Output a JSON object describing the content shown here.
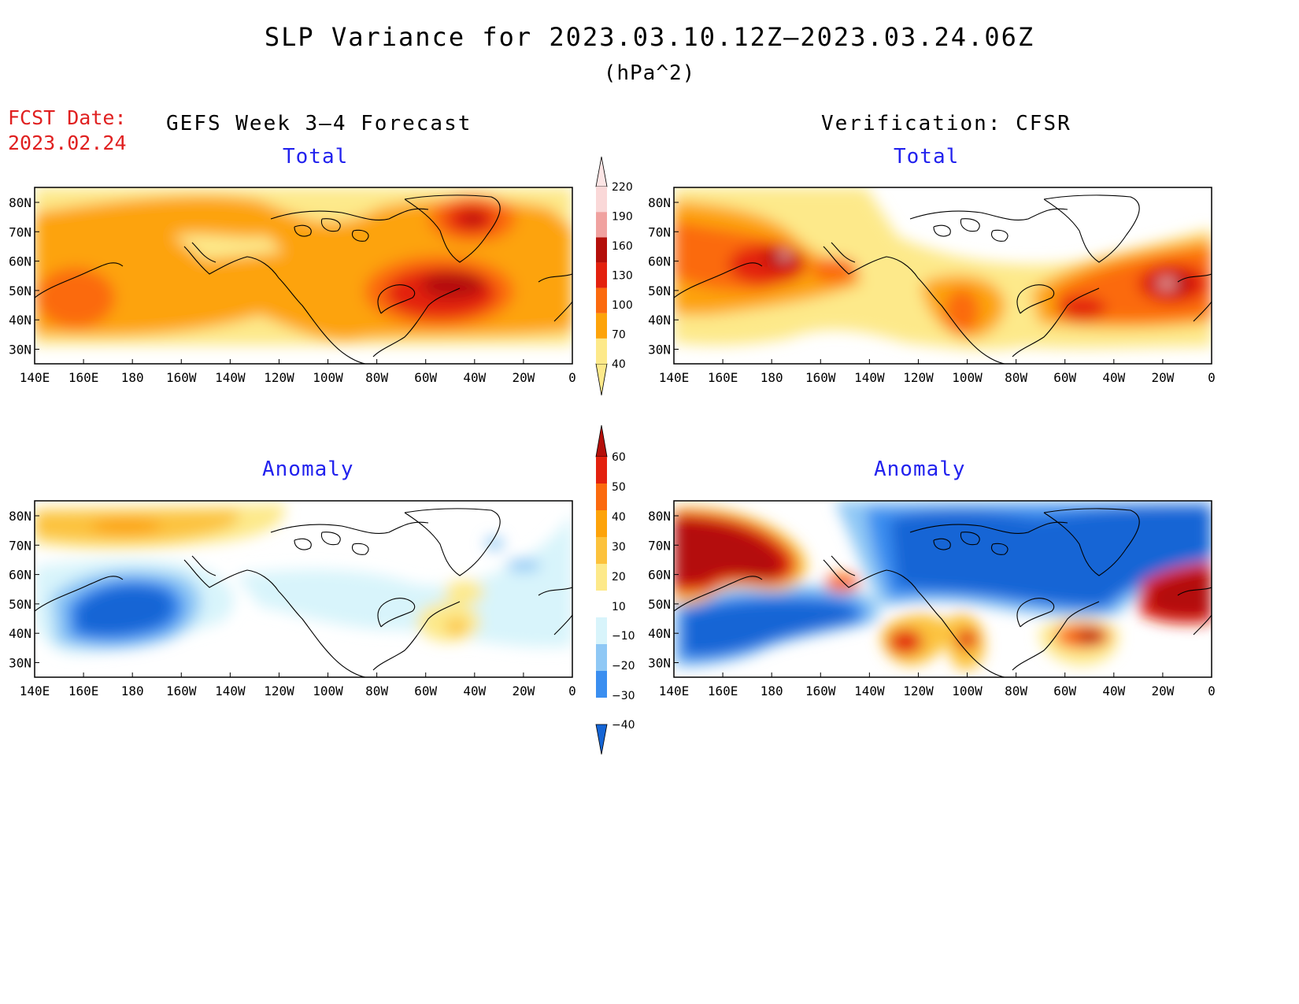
{
  "title": "SLP Variance for 2023.03.10.12Z–2023.03.24.06Z",
  "units": "(hPa^2)",
  "fcst_label": "FCST Date:",
  "fcst_date": "2023.02.24",
  "left_column_title": "GEFS Week 3–4 Forecast",
  "right_column_title": "Verification: CFSR",
  "panel_titles": {
    "total": "Total",
    "anomaly": "Anomaly"
  },
  "lon_ticks": [
    "140E",
    "160E",
    "180",
    "160W",
    "140W",
    "120W",
    "100W",
    "80W",
    "60W",
    "40W",
    "20W",
    "0"
  ],
  "lat_ticks": [
    "80N",
    "70N",
    "60N",
    "50N",
    "40N",
    "30N"
  ],
  "total_colorbar": {
    "levels": [
      "40",
      "70",
      "100",
      "130",
      "160",
      "190",
      "220"
    ],
    "colors": [
      "#fde98a",
      "#fda30a",
      "#fb6a0e",
      "#e3210e",
      "#b40f0a",
      "#f0a2a0",
      "#fad8d8"
    ]
  },
  "anomaly_colorbar": {
    "levels": [
      "60",
      "50",
      "40",
      "30",
      "20",
      "10",
      "−10",
      "−20",
      "−30",
      "−40"
    ],
    "colors": [
      "#b40f0a",
      "#e3210e",
      "#fb6a0e",
      "#fda30a",
      "#fcc23c",
      "#fde98a",
      "#ffffff",
      "#d8f4fb",
      "#8fc8f5",
      "#3a8ef0",
      "#1565d5"
    ]
  },
  "colors": {
    "title_text": "#000000",
    "fcst_text": "#e02020",
    "subtitle_text": "#2222ee",
    "coastline": "#000000"
  }
}
